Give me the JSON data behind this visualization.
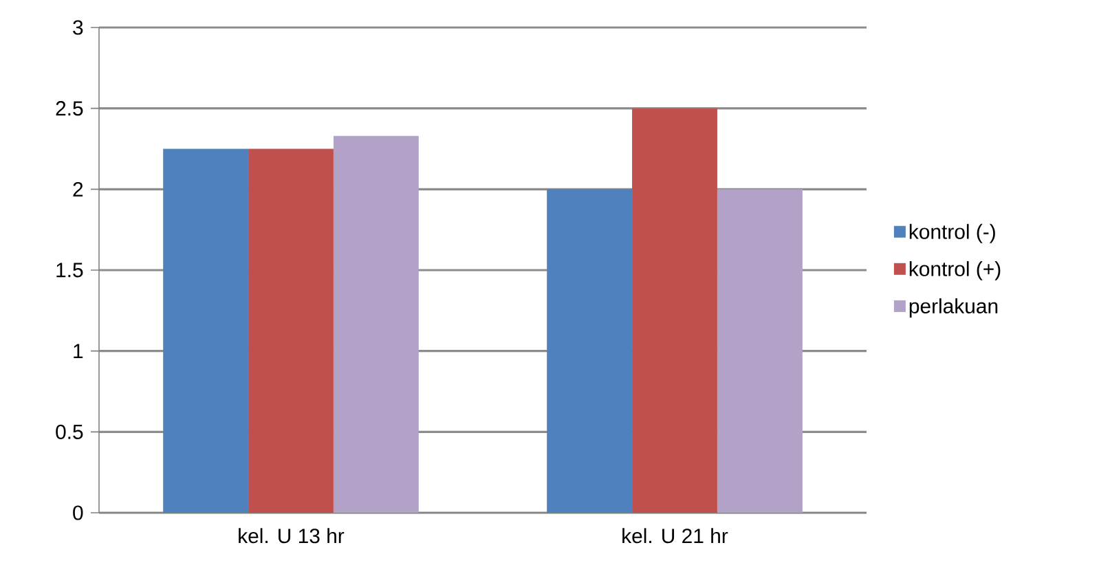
{
  "chart_data": {
    "type": "bar",
    "categories": [
      "kel. U 13 hr",
      "kel. U 21 hr"
    ],
    "series": [
      {
        "name": "kontrol (-)",
        "color": "#4f81bd",
        "values": [
          2.25,
          2.0
        ]
      },
      {
        "name": "kontrol (+)",
        "color": "#c0504d",
        "values": [
          2.25,
          2.5
        ]
      },
      {
        "name": "perlakuan",
        "color": "#b2a2c7",
        "values": [
          2.33,
          2.0
        ]
      }
    ],
    "ylim": [
      0,
      3
    ],
    "yticks": [
      0,
      0.5,
      1,
      1.5,
      2,
      2.5,
      3
    ],
    "grid": "y",
    "legend": "right"
  }
}
